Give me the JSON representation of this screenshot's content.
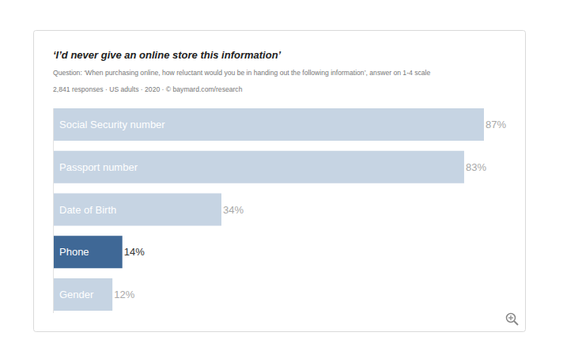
{
  "chart_data": {
    "type": "bar",
    "orientation": "horizontal",
    "title": "‘I’d never give an online store this information’",
    "subtitle": "Question: ‘When purchasing online, how reluctant would you be in handing out the following information’, answer on 1-4 scale",
    "source": "2,841 responses · US adults · 2020 · © baymard.com/research",
    "categories": [
      "Social Security number",
      "Passport number",
      "Date of Birth",
      "Phone",
      "Gender"
    ],
    "values": [
      87,
      83,
      34,
      14,
      12
    ],
    "value_labels": [
      "87%",
      "83%",
      "34%",
      "14%",
      "12%"
    ],
    "colors": [
      "#c6d4e3",
      "#c6d4e3",
      "#c6d4e3",
      "#3f6896",
      "#c6d4e3"
    ],
    "data_labels": true
  }
}
